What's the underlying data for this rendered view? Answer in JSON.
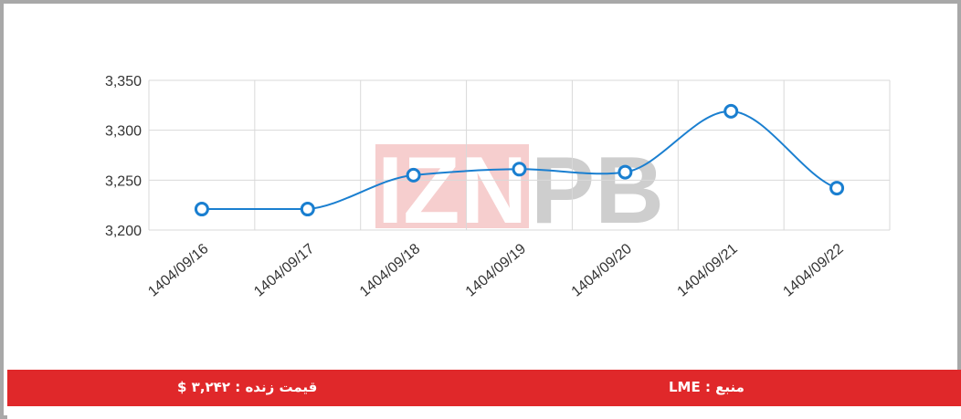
{
  "chart_data": {
    "type": "line",
    "title": "",
    "xlabel": "",
    "ylabel": "",
    "categories": [
      "1404/09/16",
      "1404/09/17",
      "1404/09/18",
      "1404/09/19",
      "1404/09/20",
      "1404/09/21",
      "1404/09/22"
    ],
    "series": [
      {
        "values": [
          3221,
          3221,
          3255,
          3261,
          3258,
          3319,
          3242
        ]
      }
    ],
    "ylim": [
      3200,
      3350
    ],
    "yticks": [
      "3,200",
      "3,250",
      "3,300",
      "3,350"
    ],
    "grid": true,
    "smooth": true,
    "line_color": "#1a7fd0"
  },
  "watermark": "IZNPB",
  "footer": {
    "live_price": "قیمت زنده : ۳,۲۴۲ $",
    "source": "منبع : LME"
  },
  "colors": {
    "footer_bg": "#e0282a",
    "grid": "#d9d9d9"
  }
}
